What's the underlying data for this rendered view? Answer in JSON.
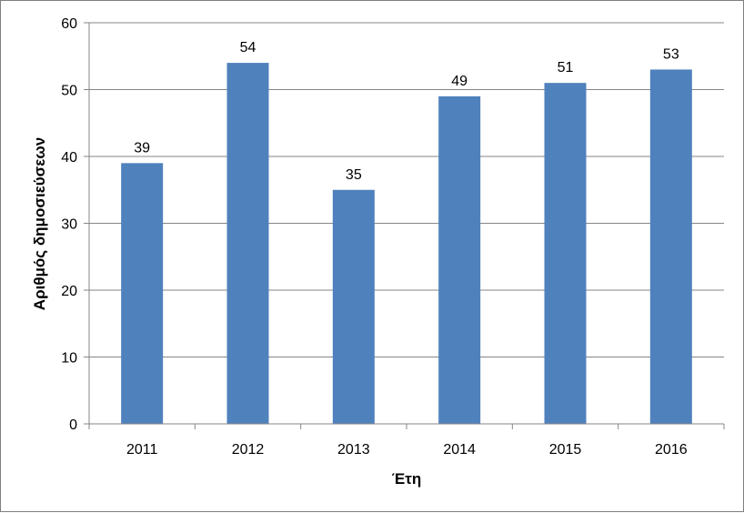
{
  "chart_data": {
    "type": "bar",
    "categories": [
      "2011",
      "2012",
      "2013",
      "2014",
      "2015",
      "2016"
    ],
    "values": [
      39,
      54,
      35,
      49,
      51,
      53
    ],
    "data_labels": [
      "39",
      "54",
      "35",
      "49",
      "51",
      "53"
    ],
    "title": "",
    "xlabel": "Έτη",
    "ylabel": "Αριθμός δημοσιεύσεων",
    "ylim": [
      0,
      60
    ],
    "yticks": [
      0,
      10,
      20,
      30,
      40,
      50,
      60
    ],
    "ytick_labels": [
      "0",
      "10",
      "20",
      "30",
      "40",
      "50",
      "60"
    ],
    "grid": true,
    "legend": "none",
    "bar_color": "#4f81bd"
  }
}
